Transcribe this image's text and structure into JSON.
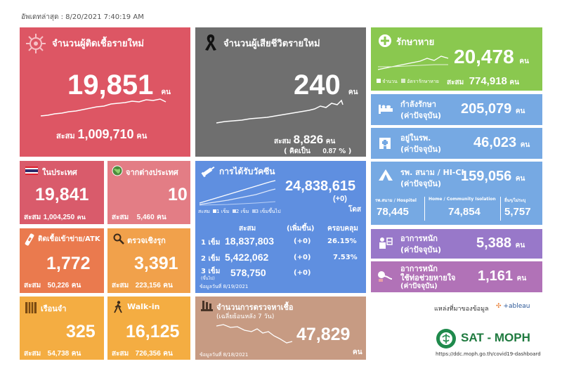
{
  "updated": "อัพเดทล่าสุด : 8/20/2021 7:40:19 AM",
  "colors": {
    "new_cases": "#dd5664",
    "deaths": "#6f6f6f",
    "recovered": "#8ac84f",
    "treating": "#76a9e3",
    "vaccine": "#5f8fe0",
    "domestic": "#d95b6b",
    "foreign": "#e37d85",
    "orange1": "#ea7a4e",
    "orange2": "#f1a14b",
    "prison": "#f4ad42",
    "test": "#c79b83",
    "severe": "#9878c9",
    "ventilator": "#b172b7"
  },
  "new_cases": {
    "title": "จำนวนผู้ติดเชื้อรายใหม่",
    "value": "19,851",
    "unit": "คน",
    "cum_label": "สะสม",
    "cum_value": "1,009,710",
    "cum_unit": "คน",
    "icon": "virus-icon"
  },
  "deaths": {
    "title": "จำนวนผู้เสียชีวิตรายใหม่",
    "value": "240",
    "unit": "คน",
    "cum_label": "สะสม",
    "cum_value": "8,826",
    "cum_unit": "คน",
    "rate_label": "( คิดเป็น",
    "rate_value": "0.87",
    "rate_unit": "% )",
    "icon": "black-ribbon-icon"
  },
  "recovered": {
    "title": "รักษาหาย",
    "value": "20,478",
    "unit": "คน",
    "legend_a": "จำนวน",
    "legend_b": "อัตรารักษาหาย",
    "cum_label": "สะสม",
    "cum_value": "774,918",
    "cum_unit": "คน"
  },
  "treating": {
    "title": "กำลังรักษา",
    "subtitle": "(ค่าปัจจุบัน)",
    "value": "205,079",
    "unit": "คน"
  },
  "hospital": {
    "title": "อยู่ในรพ.",
    "subtitle": "(ค่าปัจจุบัน)",
    "value": "46,023",
    "unit": "คน"
  },
  "field_hospital": {
    "title": "รพ. สนาม / HI-CI",
    "subtitle": "(ค่าปัจจุบัน)",
    "value": "159,056",
    "unit": "คน",
    "cols": [
      {
        "label": "รพ.สนาม / Hospitel",
        "value": "78,445"
      },
      {
        "label": "Home / Community Isolation",
        "value": "74,854"
      },
      {
        "label": "อื่นๆ/ไม่ระบุ",
        "value": "5,757"
      }
    ]
  },
  "severe": {
    "title": "อาการหนัก",
    "subtitle": "(ค่าปัจจุบัน)",
    "value": "5,388",
    "unit": "คน"
  },
  "ventilator": {
    "title": "อาการหนัก",
    "title2": "ใช้ท่อช่วยหายใจ",
    "subtitle": "(ค่าปัจจุบัน)",
    "value": "1,161",
    "unit": "คน"
  },
  "domestic": {
    "title": "ในประเทศ",
    "value": "19,841",
    "cum_label": "สะสม",
    "cum_value": "1,004,250",
    "cum_unit": "คน"
  },
  "foreign": {
    "title": "จากต่างประเทศ",
    "value": "10",
    "cum_label": "สะสม",
    "cum_value": "5,460",
    "cum_unit": "คน"
  },
  "atk": {
    "title": "ติดเชื้อเข้าข่าย/ATK",
    "value": "1,772",
    "cum_label": "สะสม",
    "cum_value": "50,226",
    "cum_unit": "คน"
  },
  "proactive": {
    "title": "ตรวจเชิงรุก",
    "value": "3,391",
    "cum_label": "สะสม",
    "cum_value": "223,156",
    "cum_unit": "คน"
  },
  "prison": {
    "title": "เรือนจำ",
    "value": "325",
    "cum_label": "สะสม",
    "cum_value": "54,738",
    "cum_unit": "คน"
  },
  "walkin": {
    "title": "Walk-in",
    "value": "16,125",
    "cum_label": "สะสม",
    "cum_value": "726,356",
    "cum_unit": "คน"
  },
  "vaccine": {
    "title": "การได้รับวัคซีน",
    "value": "24,838,615",
    "delta": "(+0)",
    "unit": "โดส",
    "legend": [
      "สะสม",
      "1 เข็ม",
      "2 เข็ม",
      "3 เข็มขึ้นไป"
    ],
    "headers": [
      "สะสม",
      "(เพิ่มขึ้น)",
      "ครอบคลุม"
    ],
    "rows": [
      {
        "dose": "1 เข็ม",
        "total": "18,837,803",
        "delta": "(+0)",
        "coverage": "26.15%"
      },
      {
        "dose": "2 เข็ม",
        "total": "5,422,062",
        "delta": "(+0)",
        "coverage": "7.53%"
      },
      {
        "dose": "3 เข็ม",
        "dose_note": "(ขึ้นไป)",
        "total": "578,750",
        "delta": "(+0)",
        "coverage": ""
      }
    ],
    "footnote": "ข้อมูลวันที่ 8/19/2021"
  },
  "tests": {
    "title": "จำนวนการตรวจหาเชื้อ",
    "subtitle": "(เฉลี่ยย้อนหลัง 7 วัน)",
    "value": "47,829",
    "unit": "คน",
    "footnote": "ข้อมูลวันที่ 8/18/2021"
  },
  "source": {
    "label": "แหล่งที่มาของข้อมูล",
    "tableau": "+ableau",
    "brand": "SAT - MOPH",
    "url": "https://ddc.moph.go.th/covid19-dashboard"
  }
}
